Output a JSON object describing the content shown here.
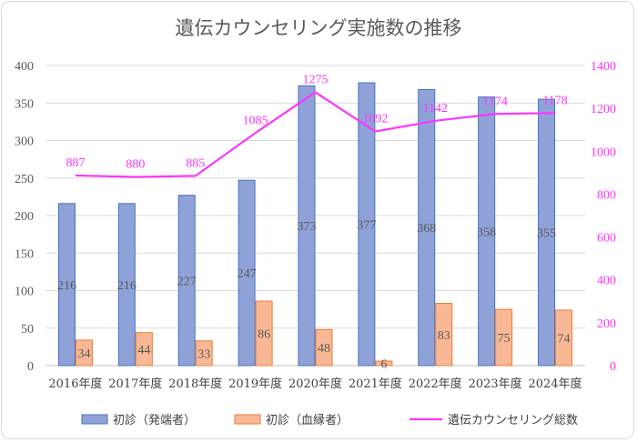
{
  "chart_data": {
    "type": "bar",
    "title": "遺伝カウンセリング実施数の推移",
    "categories": [
      "2016年度",
      "2017年度",
      "2018年度",
      "2019年度",
      "2020年度",
      "2021年度",
      "2022年度",
      "2023年度",
      "2024年度"
    ],
    "series": [
      {
        "name": "初診（発端者）",
        "type": "bar",
        "axis": "left",
        "values": [
          216,
          216,
          227,
          247,
          373,
          377,
          368,
          358,
          355
        ],
        "color": "#8fa2d8",
        "border": "#4472c4"
      },
      {
        "name": "初診（血縁者）",
        "type": "bar",
        "axis": "left",
        "values": [
          34,
          44,
          33,
          86,
          48,
          6,
          83,
          75,
          74
        ],
        "color": "#f8b896",
        "border": "#ed7d31"
      },
      {
        "name": "遺伝カウンセリング総数",
        "type": "line",
        "axis": "right",
        "values": [
          887,
          880,
          885,
          1085,
          1275,
          1092,
          1142,
          1174,
          1178
        ],
        "color": "#ff33ff"
      }
    ],
    "y_left": {
      "min": 0,
      "max": 400,
      "ticks": [
        0,
        50,
        100,
        150,
        200,
        250,
        300,
        350,
        400
      ]
    },
    "y_right": {
      "min": 0,
      "max": 1400,
      "ticks": [
        0,
        200,
        400,
        600,
        800,
        1000,
        1200,
        1400
      ]
    },
    "grid": true,
    "legend_position": "bottom"
  }
}
